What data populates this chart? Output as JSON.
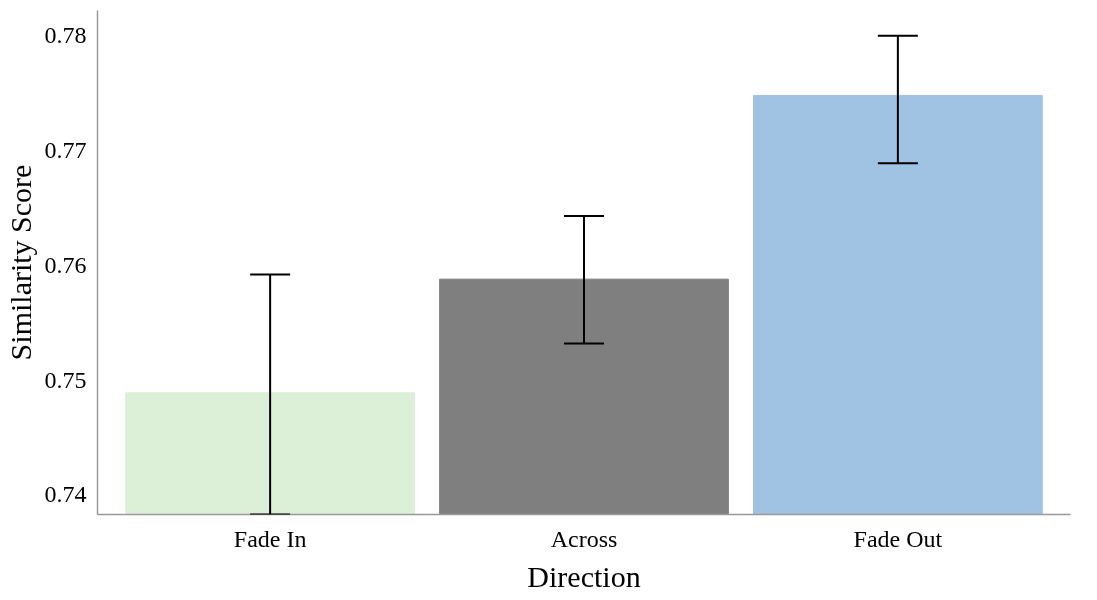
{
  "chart_data": {
    "type": "bar",
    "xlabel": "Direction",
    "ylabel": "Similarity Score",
    "categories": [
      "Fade In",
      "Across",
      "Fade Out"
    ],
    "values": [
      0.7489,
      0.7588,
      0.7748
    ],
    "colors": [
      "#dcf0d8",
      "#7f7f7f",
      "#a0c2e3"
    ],
    "errors": [
      [
        0.7383,
        0.7592
      ],
      [
        0.7532,
        0.7643
      ],
      [
        0.7689,
        0.78
      ]
    ],
    "ylim": [
      0.7383,
      0.7822
    ],
    "yticks": [
      0.74,
      0.75,
      0.76,
      0.77,
      0.78
    ],
    "grid": false
  }
}
